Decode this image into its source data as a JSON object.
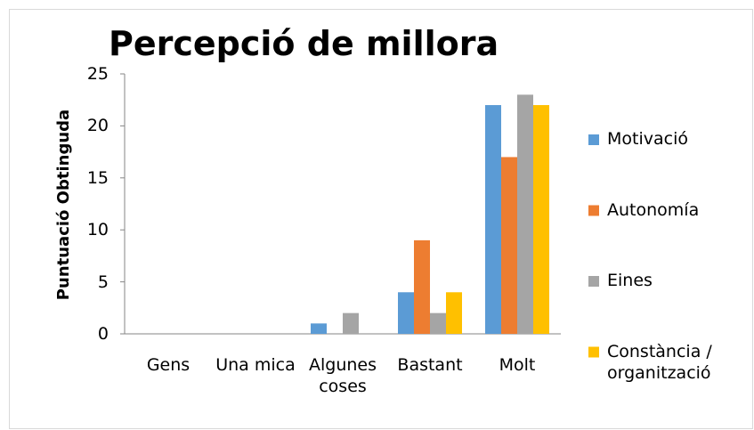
{
  "chart_data": {
    "type": "bar",
    "title": "Percepció de millora",
    "y_label": "Puntuació Obtinguda",
    "categories": [
      "Gens",
      "Una mica",
      "Algunes coses",
      "Bastant",
      "Molt"
    ],
    "series": [
      {
        "name": "Motivació",
        "color": "#5b9bd5",
        "values": [
          0,
          0,
          1,
          4,
          22
        ]
      },
      {
        "name": "Autonomía",
        "color": "#ed7d31",
        "values": [
          0,
          0,
          0,
          9,
          17
        ]
      },
      {
        "name": "Eines",
        "color": "#a5a5a5",
        "values": [
          0,
          0,
          2,
          2,
          23
        ]
      },
      {
        "name": "Constància / organització",
        "color": "#ffc000",
        "values": [
          0,
          0,
          0,
          4,
          22
        ]
      }
    ],
    "ylim": [
      0,
      25
    ],
    "yticks": [
      0,
      5,
      10,
      15,
      20,
      25
    ],
    "grid": false,
    "legend": "right"
  }
}
